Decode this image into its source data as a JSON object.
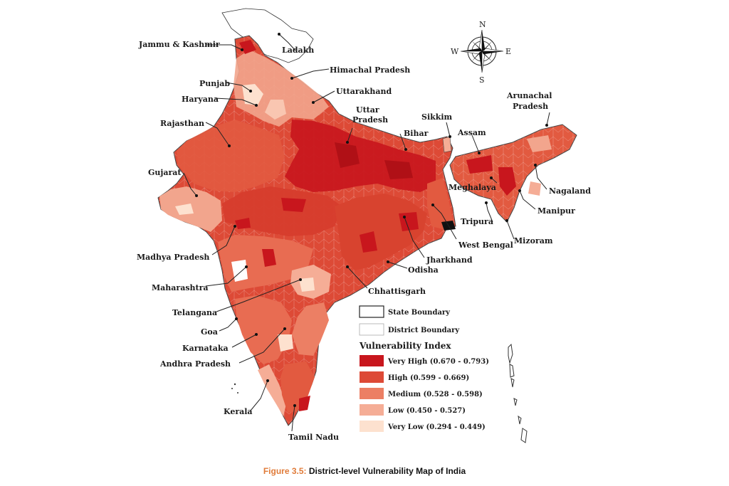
{
  "figure": {
    "number": "Figure 3.5:",
    "title": "District-level Vulnerability Map of India"
  },
  "compass": {
    "n": "N",
    "s": "S",
    "e": "E",
    "w": "W"
  },
  "states": [
    {
      "label": "Jammu & Kashmir"
    },
    {
      "label": "Ladakh"
    },
    {
      "label": "Himachal Pradesh"
    },
    {
      "label": "Punjab"
    },
    {
      "label": "Haryana"
    },
    {
      "label": "Uttarakhand"
    },
    {
      "label": "Uttar"
    },
    {
      "label": "Pradesh"
    },
    {
      "label": "Rajasthan"
    },
    {
      "label": "Sikkim"
    },
    {
      "label": "Bihar"
    },
    {
      "label": "Assam"
    },
    {
      "label": "Arunachal"
    },
    {
      "label": "Pradesh"
    },
    {
      "label": "Gujarat"
    },
    {
      "label": "Meghalaya"
    },
    {
      "label": "Nagaland"
    },
    {
      "label": "Manipur"
    },
    {
      "label": "Tripura"
    },
    {
      "label": "Mizoram"
    },
    {
      "label": "West Bengal"
    },
    {
      "label": "Madhya Pradesh"
    },
    {
      "label": "Jharkhand"
    },
    {
      "label": "Odisha"
    },
    {
      "label": "Maharashtra"
    },
    {
      "label": "Chhattisgarh"
    },
    {
      "label": "Telangana"
    },
    {
      "label": "Goa"
    },
    {
      "label": "Karnataka"
    },
    {
      "label": "Andhra Pradesh"
    },
    {
      "label": "Kerala"
    },
    {
      "label": "Tamil Nadu"
    }
  ],
  "legend": {
    "boundaries": [
      {
        "label": "State Boundary"
      },
      {
        "label": "District Boundary"
      }
    ],
    "title": "Vulnerability Index",
    "classes": [
      {
        "label": "Very High (0.670 - 0.793)",
        "color": "#c8161d"
      },
      {
        "label": "High (0.599 - 0.669)",
        "color": "#dd4a36"
      },
      {
        "label": "Medium (0.528 - 0.598)",
        "color": "#ec7f64"
      },
      {
        "label": "Low (0.450 - 0.527)",
        "color": "#f5ad96"
      },
      {
        "label": "Very Low (0.294 - 0.449)",
        "color": "#fde1cf"
      }
    ]
  }
}
